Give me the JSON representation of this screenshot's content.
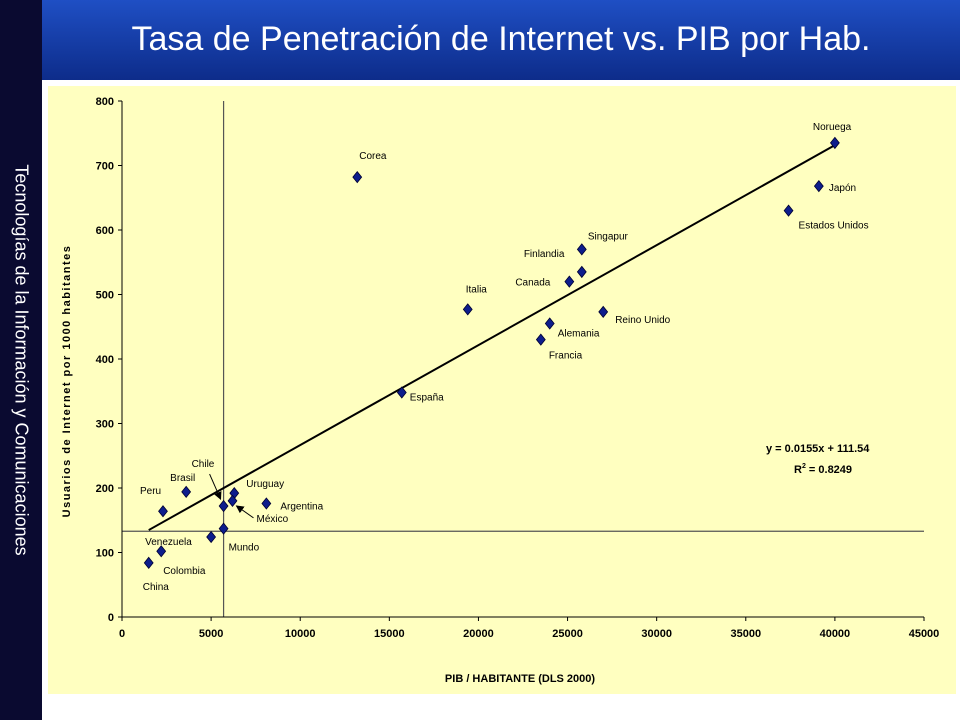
{
  "slide": {
    "title": "Tasa de Penetración de Internet vs. PIB por Hab.",
    "sidebar_text": "Tecnologías de la Información y Comunicaciones",
    "colors": {
      "sidebar": "#0a0a30",
      "header_top": "#1f4fc4",
      "header_bottom": "#0d2c8a",
      "plot_bg": "#ffffc0",
      "marker": "#0d1d8c"
    }
  },
  "chart_data": {
    "type": "scatter",
    "xlabel": "PIB / HABITANTE (DLS 2000)",
    "ylabel": "Usuarios de Internet por 1000 habitantes",
    "xlim": [
      0,
      45000
    ],
    "ylim": [
      0,
      800
    ],
    "xticks": [
      0,
      5000,
      10000,
      15000,
      20000,
      25000,
      30000,
      35000,
      40000,
      45000
    ],
    "yticks": [
      0,
      100,
      200,
      300,
      400,
      500,
      600,
      700,
      800
    ],
    "grid": false,
    "reference_lines": {
      "vertical_x": 5700,
      "horizontal_y": 133
    },
    "points": [
      {
        "label": "Noruega",
        "x": 40000,
        "y": 735
      },
      {
        "label": "Japón",
        "x": 39100,
        "y": 668
      },
      {
        "label": "Estados Unidos",
        "x": 37400,
        "y": 630
      },
      {
        "label": "Corea",
        "x": 13200,
        "y": 682
      },
      {
        "label": "Singapur",
        "x": 25800,
        "y": 570
      },
      {
        "label": "Finlandia",
        "x": 25800,
        "y": 535
      },
      {
        "label": "Canada",
        "x": 25100,
        "y": 520
      },
      {
        "label": "Italia",
        "x": 19400,
        "y": 477
      },
      {
        "label": "Reino Unido",
        "x": 27000,
        "y": 473
      },
      {
        "label": "Alemania",
        "x": 24000,
        "y": 455
      },
      {
        "label": "Francia",
        "x": 23500,
        "y": 430
      },
      {
        "label": "España",
        "x": 15700,
        "y": 348
      },
      {
        "label": "Brasil",
        "x": 3600,
        "y": 194
      },
      {
        "label": "Chile",
        "x": 5700,
        "y": 172
      },
      {
        "label": "Uruguay",
        "x": 6300,
        "y": 192
      },
      {
        "label": "Argentina",
        "x": 8100,
        "y": 176
      },
      {
        "label": "México",
        "x": 6200,
        "y": 180
      },
      {
        "label": "Peru",
        "x": 2300,
        "y": 164
      },
      {
        "label": "Mundo",
        "x": 5700,
        "y": 137
      },
      {
        "label": "Venezuela",
        "x": 5000,
        "y": 124
      },
      {
        "label": "Colombia",
        "x": 2200,
        "y": 102
      },
      {
        "label": "China",
        "x": 1500,
        "y": 84
      }
    ],
    "trendline": {
      "slope": 0.0155,
      "intercept": 111.54,
      "x_start": 1500,
      "x_end": 40000
    },
    "equation": "y = 0.0155x + 111.54",
    "r2_label": "R",
    "r2_sup": "2",
    "r2_value": " = 0.8249"
  }
}
